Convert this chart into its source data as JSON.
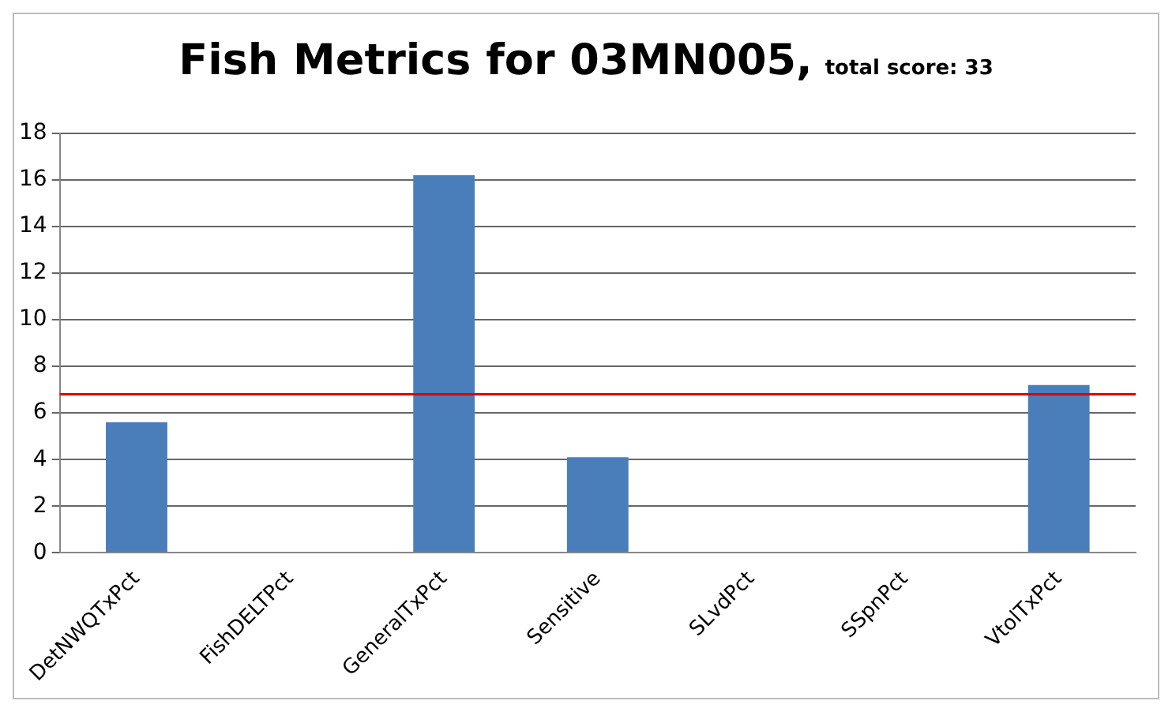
{
  "chart_data": {
    "type": "bar",
    "title": "Fish Metrics for 03MN005,",
    "subtitle": "total score: 33",
    "categories": [
      "DetNWQTxPct",
      "FishDELTPct",
      "GeneralTxPct",
      "Sensitive",
      "SLvdPct",
      "SSpnPct",
      "VtolTxPct"
    ],
    "values": [
      5.6,
      0,
      16.2,
      4.1,
      0,
      0,
      7.2
    ],
    "color": "#4a7ebb",
    "ylim": [
      0,
      18
    ],
    "yticks": [
      0,
      2,
      4,
      6,
      8,
      10,
      12,
      14,
      16,
      18
    ],
    "grid": "y",
    "legend": false,
    "ref_lines": [
      {
        "axis": "y",
        "value": 6.8,
        "color": "#e00000"
      }
    ]
  }
}
